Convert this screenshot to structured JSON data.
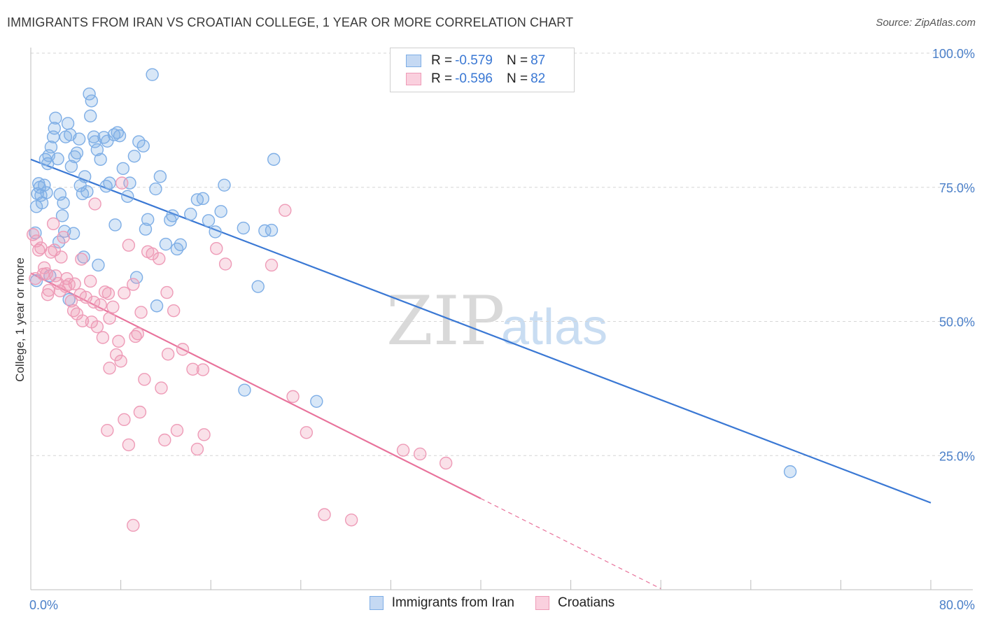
{
  "title": "IMMIGRANTS FROM IRAN VS CROATIAN COLLEGE, 1 YEAR OR MORE CORRELATION CHART",
  "source": "Source: ZipAtlas.com",
  "watermark": {
    "zip": "ZIP",
    "atlas": "atlas"
  },
  "legend_top": {
    "rows": [
      {
        "r_label": "R = ",
        "r_value": "-0.579",
        "n_label": "N = ",
        "n_value": "87",
        "color": "#7eaee6",
        "fill": "#c5d9f3"
      },
      {
        "r_label": "R = ",
        "r_value": "-0.596",
        "n_label": "N = ",
        "n_value": "82",
        "color": "#ee9bb7",
        "fill": "#fad0de"
      }
    ]
  },
  "legend_bottom": [
    {
      "label": "Immigrants from Iran",
      "color": "#7eaee6",
      "fill": "#c5d9f3"
    },
    {
      "label": "Croatians",
      "color": "#ee9bb7",
      "fill": "#fad0de"
    }
  ],
  "chart_data": {
    "type": "scatter",
    "title": "IMMIGRANTS FROM IRAN VS CROATIAN COLLEGE, 1 YEAR OR MORE CORRELATION CHART",
    "xlabel": "",
    "ylabel": "College, 1 year or more",
    "xlim": [
      0,
      80
    ],
    "ylim": [
      0,
      100
    ],
    "x_tick_labels": [
      "0.0%",
      "80.0%"
    ],
    "y_ticks": [
      25,
      50,
      75,
      100
    ],
    "y_tick_labels": [
      "25.0%",
      "50.0%",
      "75.0%",
      "100.0%"
    ],
    "grid": true,
    "series": [
      {
        "name": "Immigrants from Iran",
        "color": "#3a78d4",
        "point_color": "#7eaee6",
        "trend": {
          "x": [
            0,
            80
          ],
          "y": [
            80.2,
            16.2
          ]
        },
        "points": [
          [
            0.5,
            57.6
          ],
          [
            0.4,
            66.5
          ],
          [
            0.5,
            71.4
          ],
          [
            0.6,
            73.8
          ],
          [
            0.7,
            75.7
          ],
          [
            0.8,
            75.0
          ],
          [
            1.0,
            72.1
          ],
          [
            1.2,
            75.4
          ],
          [
            1.3,
            80.2
          ],
          [
            1.5,
            79.4
          ],
          [
            1.6,
            80.9
          ],
          [
            1.8,
            82.5
          ],
          [
            2.0,
            84.4
          ],
          [
            2.1,
            86.0
          ],
          [
            2.2,
            87.9
          ],
          [
            2.4,
            80.3
          ],
          [
            2.6,
            73.7
          ],
          [
            2.8,
            69.7
          ],
          [
            3.0,
            66.8
          ],
          [
            3.1,
            84.4
          ],
          [
            3.3,
            86.9
          ],
          [
            3.5,
            84.8
          ],
          [
            3.6,
            78.9
          ],
          [
            3.9,
            80.7
          ],
          [
            4.1,
            81.4
          ],
          [
            4.3,
            84.0
          ],
          [
            4.4,
            75.3
          ],
          [
            4.6,
            73.8
          ],
          [
            4.8,
            77.0
          ],
          [
            5.0,
            74.2
          ],
          [
            5.2,
            92.4
          ],
          [
            5.4,
            91.1
          ],
          [
            5.3,
            88.3
          ],
          [
            5.6,
            84.4
          ],
          [
            5.9,
            82.0
          ],
          [
            6.2,
            80.2
          ],
          [
            6.5,
            84.3
          ],
          [
            6.8,
            83.6
          ],
          [
            7.0,
            75.8
          ],
          [
            7.4,
            84.8
          ],
          [
            7.7,
            85.2
          ],
          [
            7.9,
            84.6
          ],
          [
            8.2,
            78.5
          ],
          [
            8.8,
            75.8
          ],
          [
            9.2,
            80.8
          ],
          [
            9.6,
            83.5
          ],
          [
            10.0,
            82.7
          ],
          [
            10.4,
            69.0
          ],
          [
            10.8,
            96.0
          ],
          [
            11.1,
            74.7
          ],
          [
            11.5,
            77.0
          ],
          [
            12.4,
            68.9
          ],
          [
            12.6,
            69.7
          ],
          [
            13.3,
            64.3
          ],
          [
            13.0,
            63.5
          ],
          [
            14.8,
            72.7
          ],
          [
            15.3,
            72.9
          ],
          [
            15.8,
            68.8
          ],
          [
            16.4,
            66.7
          ],
          [
            17.2,
            75.4
          ],
          [
            18.9,
            67.4
          ],
          [
            20.2,
            56.5
          ],
          [
            20.8,
            66.9
          ],
          [
            21.6,
            80.2
          ],
          [
            21.4,
            67.0
          ],
          [
            19.0,
            37.2
          ],
          [
            25.4,
            35.1
          ],
          [
            67.5,
            22.0
          ],
          [
            6.0,
            60.5
          ],
          [
            7.5,
            68.0
          ],
          [
            9.4,
            58.2
          ],
          [
            11.2,
            52.9
          ],
          [
            1.7,
            58.5
          ],
          [
            2.5,
            64.8
          ],
          [
            3.4,
            54.1
          ],
          [
            4.7,
            62.0
          ],
          [
            0.9,
            73.5
          ],
          [
            1.4,
            74.0
          ],
          [
            2.9,
            72.1
          ],
          [
            5.7,
            83.5
          ],
          [
            3.8,
            66.4
          ],
          [
            6.7,
            75.2
          ],
          [
            8.6,
            73.3
          ],
          [
            10.2,
            67.2
          ],
          [
            12.0,
            64.4
          ],
          [
            14.2,
            70.0
          ],
          [
            16.9,
            70.5
          ]
        ]
      },
      {
        "name": "Croatians",
        "color": "#e8729b",
        "point_color": "#ee9bb7",
        "trend": {
          "x": [
            0,
            40
          ],
          "y": [
            59.0,
            17.0
          ]
        },
        "trend_dashed": {
          "x": [
            40,
            56
          ],
          "y": [
            17.0,
            0.2
          ]
        },
        "points": [
          [
            0.2,
            66.2
          ],
          [
            0.5,
            65.0
          ],
          [
            0.7,
            63.3
          ],
          [
            0.9,
            63.7
          ],
          [
            1.2,
            60.0
          ],
          [
            1.4,
            58.9
          ],
          [
            1.6,
            55.8
          ],
          [
            1.8,
            62.9
          ],
          [
            2.0,
            68.2
          ],
          [
            2.1,
            63.3
          ],
          [
            2.4,
            57.1
          ],
          [
            2.6,
            55.7
          ],
          [
            2.9,
            65.7
          ],
          [
            3.2,
            58.0
          ],
          [
            3.4,
            56.9
          ],
          [
            3.6,
            53.8
          ],
          [
            3.8,
            52.0
          ],
          [
            4.1,
            51.4
          ],
          [
            4.5,
            61.6
          ],
          [
            4.9,
            54.5
          ],
          [
            5.3,
            57.5
          ],
          [
            5.6,
            53.6
          ],
          [
            5.9,
            49.0
          ],
          [
            6.2,
            53.1
          ],
          [
            6.6,
            55.5
          ],
          [
            7.0,
            50.6
          ],
          [
            7.3,
            52.7
          ],
          [
            7.8,
            46.3
          ],
          [
            8.3,
            55.3
          ],
          [
            8.7,
            64.2
          ],
          [
            9.1,
            56.9
          ],
          [
            9.5,
            47.7
          ],
          [
            9.8,
            51.7
          ],
          [
            10.4,
            63.0
          ],
          [
            10.8,
            62.6
          ],
          [
            11.4,
            61.7
          ],
          [
            12.1,
            55.4
          ],
          [
            12.7,
            52.0
          ],
          [
            13.5,
            44.8
          ],
          [
            14.4,
            41.1
          ],
          [
            15.3,
            41.0
          ],
          [
            16.5,
            63.6
          ],
          [
            17.3,
            60.7
          ],
          [
            21.4,
            60.5
          ],
          [
            22.6,
            70.7
          ],
          [
            23.3,
            36.0
          ],
          [
            24.5,
            29.3
          ],
          [
            26.1,
            14.0
          ],
          [
            28.5,
            13.0
          ],
          [
            33.1,
            26.0
          ],
          [
            34.6,
            25.3
          ],
          [
            36.9,
            23.6
          ],
          [
            6.8,
            29.7
          ],
          [
            8.3,
            31.7
          ],
          [
            8.7,
            27.0
          ],
          [
            9.7,
            33.1
          ],
          [
            11.9,
            27.9
          ],
          [
            13.0,
            29.7
          ],
          [
            14.8,
            26.2
          ],
          [
            15.4,
            28.9
          ],
          [
            11.6,
            37.6
          ],
          [
            10.1,
            39.2
          ],
          [
            8.0,
            42.6
          ],
          [
            7.6,
            43.8
          ],
          [
            7.0,
            41.3
          ],
          [
            12.2,
            43.9
          ],
          [
            9.3,
            47.2
          ],
          [
            6.4,
            47.0
          ],
          [
            5.4,
            49.9
          ],
          [
            4.6,
            50.1
          ],
          [
            3.1,
            56.5
          ],
          [
            1.1,
            58.8
          ],
          [
            0.4,
            58.0
          ],
          [
            8.1,
            75.8
          ],
          [
            5.7,
            71.9
          ],
          [
            2.7,
            62.0
          ],
          [
            4.4,
            55.0
          ],
          [
            6.9,
            55.2
          ],
          [
            9.1,
            12.0
          ],
          [
            3.9,
            57.0
          ],
          [
            2.2,
            58.5
          ],
          [
            1.5,
            55.0
          ]
        ]
      }
    ]
  }
}
